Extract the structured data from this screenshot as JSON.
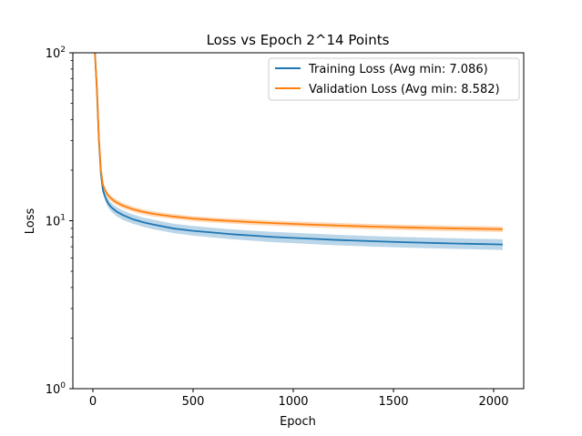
{
  "chart_data": {
    "type": "line",
    "title": "Loss vs Epoch 2^14 Points",
    "xlabel": "Epoch",
    "ylabel": "Loss",
    "x_scale": "linear",
    "y_scale": "log",
    "xlim": [
      -100,
      2150
    ],
    "ylim": [
      1,
      100
    ],
    "x_ticks": [
      0,
      500,
      1000,
      1500,
      2000
    ],
    "y_ticks": [
      1,
      10,
      100
    ],
    "y_tick_labels": [
      "10^0",
      "10^1",
      "10^2"
    ],
    "grid": false,
    "legend_position": "upper right",
    "series": [
      {
        "name": "Training Loss (Avg min: 7.086)",
        "color": "#1f77b4",
        "band_color": "#1f77b4",
        "x": [
          10,
          20,
          30,
          40,
          50,
          60,
          70,
          80,
          90,
          100,
          120,
          150,
          200,
          250,
          300,
          400,
          500,
          600,
          700,
          800,
          900,
          1000,
          1100,
          1200,
          1300,
          1400,
          1500,
          1600,
          1700,
          1800,
          1900,
          2000,
          2045
        ],
        "y": [
          100,
          60,
          30,
          19,
          15.2,
          14.0,
          13.1,
          12.5,
          12.1,
          11.8,
          11.3,
          10.8,
          10.2,
          9.8,
          9.5,
          9.0,
          8.7,
          8.5,
          8.3,
          8.15,
          8.0,
          7.9,
          7.8,
          7.7,
          7.62,
          7.55,
          7.48,
          7.42,
          7.37,
          7.32,
          7.28,
          7.24,
          7.22
        ],
        "lower": [
          100,
          58,
          28.5,
          18,
          14.5,
          13.3,
          12.4,
          11.8,
          11.4,
          11.1,
          10.6,
          10.1,
          9.6,
          9.2,
          8.9,
          8.45,
          8.15,
          7.95,
          7.75,
          7.6,
          7.45,
          7.35,
          7.25,
          7.15,
          7.08,
          7.01,
          6.95,
          6.9,
          6.85,
          6.8,
          6.76,
          6.72,
          6.7
        ],
        "upper": [
          100,
          62,
          31.5,
          20,
          16.0,
          14.8,
          13.9,
          13.3,
          12.8,
          12.5,
          12.0,
          11.5,
          10.9,
          10.45,
          10.15,
          9.6,
          9.3,
          9.08,
          8.88,
          8.72,
          8.58,
          8.47,
          8.37,
          8.27,
          8.18,
          8.1,
          8.03,
          7.97,
          7.91,
          7.86,
          7.82,
          7.78,
          7.76
        ]
      },
      {
        "name": "Validation Loss (Avg min: 8.582)",
        "color": "#ff7f0e",
        "band_color": "#ff7f0e",
        "x": [
          10,
          20,
          30,
          40,
          50,
          60,
          70,
          80,
          90,
          100,
          120,
          150,
          200,
          250,
          300,
          400,
          500,
          600,
          700,
          800,
          900,
          1000,
          1100,
          1200,
          1300,
          1400,
          1500,
          1600,
          1700,
          1800,
          1900,
          2000,
          2045
        ],
        "y": [
          100,
          62,
          31,
          20,
          16.4,
          15.3,
          14.5,
          14.0,
          13.6,
          13.3,
          12.8,
          12.3,
          11.7,
          11.3,
          11.0,
          10.6,
          10.3,
          10.1,
          9.95,
          9.8,
          9.68,
          9.57,
          9.47,
          9.38,
          9.3,
          9.22,
          9.16,
          9.1,
          9.05,
          9.0,
          8.96,
          8.92,
          8.9
        ],
        "lower": [
          100,
          60,
          30,
          19.3,
          15.9,
          14.8,
          14.0,
          13.5,
          13.1,
          12.8,
          12.35,
          11.85,
          11.3,
          10.9,
          10.6,
          10.25,
          9.95,
          9.75,
          9.6,
          9.46,
          9.34,
          9.23,
          9.13,
          9.04,
          8.96,
          8.88,
          8.82,
          8.76,
          8.71,
          8.66,
          8.62,
          8.58,
          8.56
        ],
        "upper": [
          100,
          64,
          32,
          20.8,
          16.9,
          15.8,
          15.0,
          14.5,
          14.1,
          13.8,
          13.3,
          12.75,
          12.1,
          11.7,
          11.4,
          10.95,
          10.65,
          10.45,
          10.3,
          10.15,
          10.02,
          9.91,
          9.81,
          9.72,
          9.64,
          9.56,
          9.5,
          9.44,
          9.39,
          9.34,
          9.3,
          9.26,
          9.24
        ]
      }
    ]
  }
}
